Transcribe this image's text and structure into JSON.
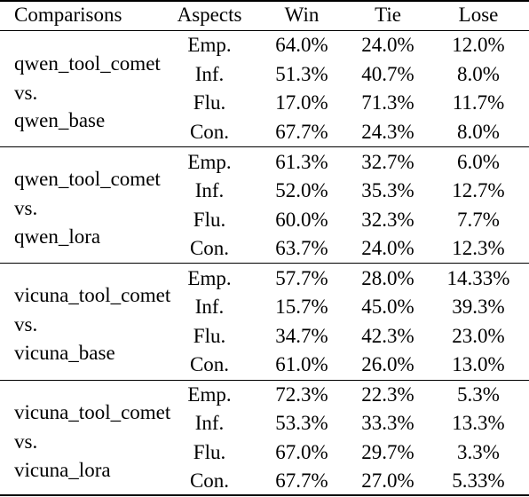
{
  "table": {
    "headers": [
      "Comparisons",
      "Aspects",
      "Win",
      "Tie",
      "Lose"
    ],
    "groups": [
      {
        "comparison": [
          "qwen_tool_comet",
          "vs.",
          "qwen_base"
        ],
        "rows": [
          {
            "aspect": "Emp.",
            "win": "64.0%",
            "tie": "24.0%",
            "lose": "12.0%"
          },
          {
            "aspect": "Inf.",
            "win": "51.3%",
            "tie": "40.7%",
            "lose": "8.0%"
          },
          {
            "aspect": "Flu.",
            "win": "17.0%",
            "tie": "71.3%",
            "lose": "11.7%"
          },
          {
            "aspect": "Con.",
            "win": "67.7%",
            "tie": "24.3%",
            "lose": "8.0%"
          }
        ]
      },
      {
        "comparison": [
          "qwen_tool_comet",
          "vs.",
          "qwen_lora"
        ],
        "rows": [
          {
            "aspect": "Emp.",
            "win": "61.3%",
            "tie": "32.7%",
            "lose": "6.0%"
          },
          {
            "aspect": "Inf.",
            "win": "52.0%",
            "tie": "35.3%",
            "lose": "12.7%"
          },
          {
            "aspect": "Flu.",
            "win": "60.0%",
            "tie": "32.3%",
            "lose": "7.7%"
          },
          {
            "aspect": "Con.",
            "win": "63.7%",
            "tie": "24.0%",
            "lose": "12.3%"
          }
        ]
      },
      {
        "comparison": [
          "vicuna_tool_comet",
          "vs.",
          "vicuna_base"
        ],
        "rows": [
          {
            "aspect": "Emp.",
            "win": "57.7%",
            "tie": "28.0%",
            "lose": "14.33%"
          },
          {
            "aspect": "Inf.",
            "win": "15.7%",
            "tie": "45.0%",
            "lose": "39.3%"
          },
          {
            "aspect": "Flu.",
            "win": "34.7%",
            "tie": "42.3%",
            "lose": "23.0%"
          },
          {
            "aspect": "Con.",
            "win": "61.0%",
            "tie": "26.0%",
            "lose": "13.0%"
          }
        ]
      },
      {
        "comparison": [
          "vicuna_tool_comet",
          "vs.",
          "vicuna_lora"
        ],
        "rows": [
          {
            "aspect": "Emp.",
            "win": "72.3%",
            "tie": "22.3%",
            "lose": "5.3%"
          },
          {
            "aspect": "Inf.",
            "win": "53.3%",
            "tie": "33.3%",
            "lose": "13.3%"
          },
          {
            "aspect": "Flu.",
            "win": "67.0%",
            "tie": "29.7%",
            "lose": "3.3%"
          },
          {
            "aspect": "Con.",
            "win": "67.7%",
            "tie": "27.0%",
            "lose": "5.33%"
          }
        ]
      }
    ]
  }
}
